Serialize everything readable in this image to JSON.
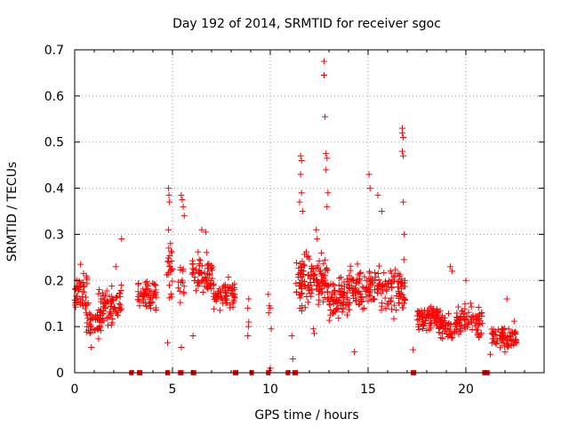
{
  "colors": {
    "points": "#ff0000",
    "axis": "#000000",
    "grid": "#a0a0a0"
  },
  "chart_data": {
    "type": "scatter",
    "title": "Day 192 of 2014, SRMTID for receiver sgoc",
    "xlabel": "GPS time / hours",
    "ylabel": "SRMTID / TECUs",
    "xlim": [
      0,
      24
    ],
    "ylim": [
      0,
      0.7
    ],
    "grid": true,
    "marker": "+",
    "x_ticks": [
      0,
      5,
      10,
      15,
      20
    ],
    "x_tick_labels": [
      "0",
      "5",
      "10",
      "15",
      "20"
    ],
    "y_ticks": [
      0,
      0.1,
      0.2,
      0.3,
      0.4,
      0.5,
      0.6,
      0.7
    ],
    "y_tick_labels": [
      "0",
      "0.1",
      "0.2",
      "0.3",
      "0.4",
      "0.5",
      "0.6",
      "0.7"
    ],
    "clusters": [
      {
        "x0": 0.0,
        "x1": 0.65,
        "center": 0.17,
        "spread": 0.035,
        "n": 45
      },
      {
        "x0": 0.6,
        "x1": 1.35,
        "center": 0.11,
        "spread": 0.03,
        "n": 45
      },
      {
        "x0": 1.2,
        "x1": 2.4,
        "center": 0.15,
        "spread": 0.04,
        "n": 70
      },
      {
        "x0": 3.2,
        "x1": 4.2,
        "center": 0.17,
        "spread": 0.03,
        "n": 60
      },
      {
        "x0": 4.7,
        "x1": 5.0,
        "center": 0.22,
        "spread": 0.06,
        "n": 22
      },
      {
        "x0": 5.3,
        "x1": 5.6,
        "center": 0.2,
        "spread": 0.05,
        "n": 14
      },
      {
        "x0": 6.0,
        "x1": 7.1,
        "center": 0.21,
        "spread": 0.04,
        "n": 70
      },
      {
        "x0": 7.1,
        "x1": 8.2,
        "center": 0.17,
        "spread": 0.03,
        "n": 65
      },
      {
        "x0": 11.3,
        "x1": 12.3,
        "center": 0.2,
        "spread": 0.05,
        "n": 75
      },
      {
        "x0": 12.3,
        "x1": 13.0,
        "center": 0.2,
        "spread": 0.05,
        "n": 55
      },
      {
        "x0": 13.0,
        "x1": 14.0,
        "center": 0.16,
        "spread": 0.04,
        "n": 70
      },
      {
        "x0": 14.0,
        "x1": 15.2,
        "center": 0.18,
        "spread": 0.04,
        "n": 85
      },
      {
        "x0": 15.2,
        "x1": 16.9,
        "center": 0.18,
        "spread": 0.045,
        "n": 100
      },
      {
        "x0": 17.5,
        "x1": 18.6,
        "center": 0.12,
        "spread": 0.025,
        "n": 75
      },
      {
        "x0": 18.6,
        "x1": 19.5,
        "center": 0.1,
        "spread": 0.025,
        "n": 55
      },
      {
        "x0": 19.5,
        "x1": 20.9,
        "center": 0.11,
        "spread": 0.03,
        "n": 85
      },
      {
        "x0": 21.3,
        "x1": 22.6,
        "center": 0.08,
        "spread": 0.025,
        "n": 80
      }
    ],
    "points": [
      {
        "x": 2.4,
        "y": 0.29
      },
      {
        "x": 4.75,
        "y": 0.065
      },
      {
        "x": 4.8,
        "y": 0.4
      },
      {
        "x": 4.82,
        "y": 0.385
      },
      {
        "x": 4.85,
        "y": 0.37
      },
      {
        "x": 4.8,
        "y": 0.31
      },
      {
        "x": 4.9,
        "y": 0.28
      },
      {
        "x": 4.85,
        "y": 0.23
      },
      {
        "x": 5.45,
        "y": 0.385
      },
      {
        "x": 5.5,
        "y": 0.375
      },
      {
        "x": 5.55,
        "y": 0.36
      },
      {
        "x": 5.6,
        "y": 0.34
      },
      {
        "x": 5.45,
        "y": 0.055
      },
      {
        "x": 6.05,
        "y": 0.08
      },
      {
        "x": 8.9,
        "y": 0.16
      },
      {
        "x": 8.85,
        "y": 0.14
      },
      {
        "x": 8.9,
        "y": 0.11
      },
      {
        "x": 8.88,
        "y": 0.1
      },
      {
        "x": 8.85,
        "y": 0.08
      },
      {
        "x": 9.9,
        "y": 0.17
      },
      {
        "x": 9.95,
        "y": 0.145
      },
      {
        "x": 10.0,
        "y": 0.14
      },
      {
        "x": 9.92,
        "y": 0.13
      },
      {
        "x": 10.05,
        "y": 0.095
      },
      {
        "x": 9.95,
        "y": 0.005
      },
      {
        "x": 10.0,
        "y": 0.01
      },
      {
        "x": 11.1,
        "y": 0.08
      },
      {
        "x": 11.15,
        "y": 0.03
      },
      {
        "x": 11.55,
        "y": 0.47
      },
      {
        "x": 11.6,
        "y": 0.46
      },
      {
        "x": 11.55,
        "y": 0.43
      },
      {
        "x": 11.6,
        "y": 0.39
      },
      {
        "x": 11.5,
        "y": 0.37
      },
      {
        "x": 11.65,
        "y": 0.35
      },
      {
        "x": 12.75,
        "y": 0.675
      },
      {
        "x": 12.75,
        "y": 0.645
      },
      {
        "x": 12.8,
        "y": 0.555
      },
      {
        "x": 12.85,
        "y": 0.475
      },
      {
        "x": 12.9,
        "y": 0.465
      },
      {
        "x": 12.85,
        "y": 0.44
      },
      {
        "x": 12.95,
        "y": 0.39
      },
      {
        "x": 12.9,
        "y": 0.36
      },
      {
        "x": 15.05,
        "y": 0.43
      },
      {
        "x": 15.1,
        "y": 0.4
      },
      {
        "x": 14.3,
        "y": 0.045
      },
      {
        "x": 16.75,
        "y": 0.53
      },
      {
        "x": 16.75,
        "y": 0.52
      },
      {
        "x": 16.8,
        "y": 0.51
      },
      {
        "x": 16.75,
        "y": 0.48
      },
      {
        "x": 16.8,
        "y": 0.47
      },
      {
        "x": 16.8,
        "y": 0.37
      },
      {
        "x": 16.85,
        "y": 0.3
      },
      {
        "x": 15.5,
        "y": 0.385
      },
      {
        "x": 15.7,
        "y": 0.35
      },
      {
        "x": 12.35,
        "y": 0.31
      },
      {
        "x": 12.4,
        "y": 0.29
      },
      {
        "x": 12.2,
        "y": 0.095
      },
      {
        "x": 12.25,
        "y": 0.085
      },
      {
        "x": 6.5,
        "y": 0.31
      },
      {
        "x": 6.7,
        "y": 0.305
      },
      {
        "x": 2.1,
        "y": 0.23
      },
      {
        "x": 0.3,
        "y": 0.235
      },
      {
        "x": 0.85,
        "y": 0.055
      },
      {
        "x": 19.2,
        "y": 0.23
      },
      {
        "x": 19.3,
        "y": 0.22
      },
      {
        "x": 20.0,
        "y": 0.2
      },
      {
        "x": 21.25,
        "y": 0.04
      },
      {
        "x": 22.0,
        "y": 0.045
      },
      {
        "x": 22.1,
        "y": 0.16
      },
      {
        "x": 17.3,
        "y": 0.05
      }
    ],
    "zero_points_x": [
      2.9,
      3.3,
      3.35,
      4.75,
      5.4,
      5.45,
      6.05,
      6.1,
      8.2,
      8.25,
      9.05,
      9.9,
      10.9,
      11.25,
      11.3,
      17.3,
      17.35,
      20.95,
      21.0,
      21.1
    ]
  }
}
